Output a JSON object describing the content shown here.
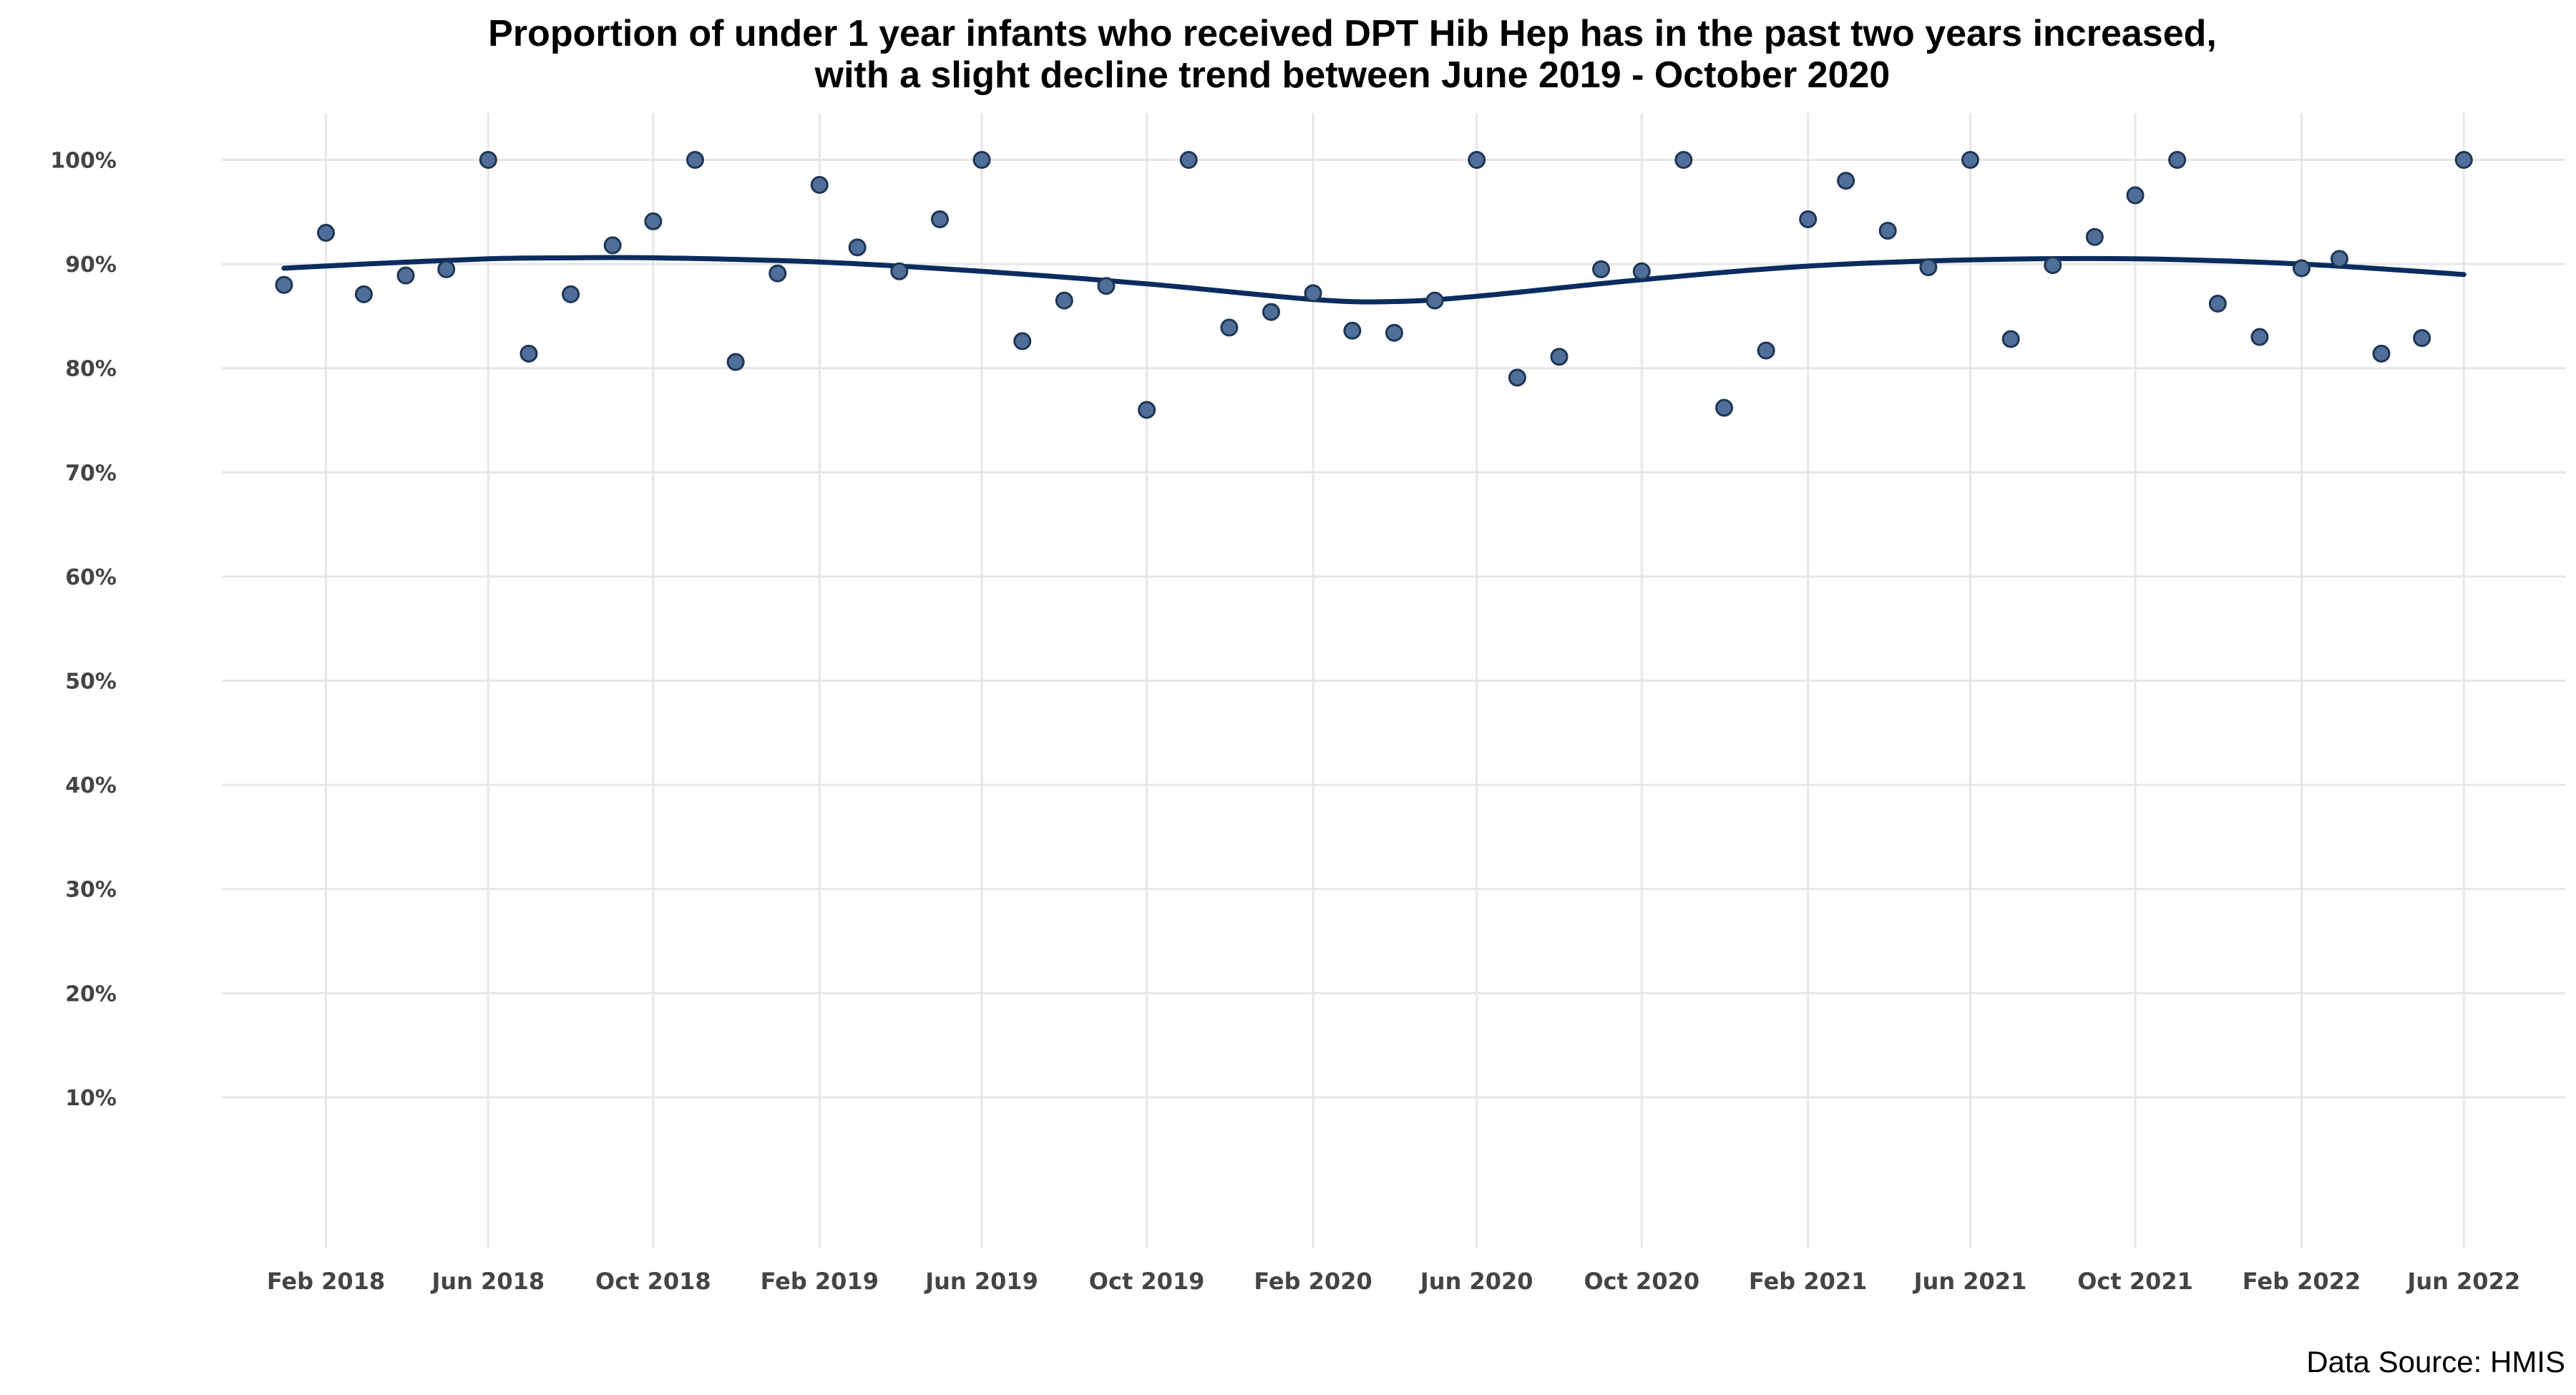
{
  "chart_data": {
    "type": "scatter",
    "title_lines": [
      "Proportion of under 1 year infants who received DPT Hib Hep has in the past two years increased,",
      "with a slight decline trend between June 2019 - October 2020"
    ],
    "source": "Data Source: HMIS",
    "xlabel": "",
    "ylabel": "",
    "x_ticks": [
      {
        "date": "2018-02-01",
        "label": "Feb 2018"
      },
      {
        "date": "2018-06-01",
        "label": "Jun 2018"
      },
      {
        "date": "2018-10-01",
        "label": "Oct 2018"
      },
      {
        "date": "2019-02-01",
        "label": "Feb 2019"
      },
      {
        "date": "2019-06-01",
        "label": "Jun 2019"
      },
      {
        "date": "2019-10-01",
        "label": "Oct 2019"
      },
      {
        "date": "2020-02-01",
        "label": "Feb 2020"
      },
      {
        "date": "2020-06-01",
        "label": "Jun 2020"
      },
      {
        "date": "2020-10-01",
        "label": "Oct 2020"
      },
      {
        "date": "2021-02-01",
        "label": "Feb 2021"
      },
      {
        "date": "2021-06-01",
        "label": "Jun 2021"
      },
      {
        "date": "2021-10-01",
        "label": "Oct 2021"
      },
      {
        "date": "2022-02-01",
        "label": "Feb 2022"
      },
      {
        "date": "2022-06-01",
        "label": "Jun 2022"
      }
    ],
    "y_ticks": [
      {
        "value": 10,
        "label": "10%"
      },
      {
        "value": 20,
        "label": "20%"
      },
      {
        "value": 30,
        "label": "30%"
      },
      {
        "value": 40,
        "label": "40%"
      },
      {
        "value": 50,
        "label": "50%"
      },
      {
        "value": 60,
        "label": "60%"
      },
      {
        "value": 70,
        "label": "70%"
      },
      {
        "value": 80,
        "label": "80%"
      },
      {
        "value": 90,
        "label": "90%"
      },
      {
        "value": 100,
        "label": "100%"
      }
    ],
    "xlim": [
      "2017-11-16",
      "2022-08-15"
    ],
    "ylim": [
      -4.5,
      104.5
    ],
    "grid": true,
    "legend": "none",
    "colors": {
      "point_fill": "#4f6f9a",
      "point_stroke": "#1f3553",
      "trend": "#0b2c5f",
      "grid": "#e6e6e6"
    },
    "series": [
      {
        "points": [
          {
            "x": "2018-01-01",
            "y": 88.0
          },
          {
            "x": "2018-02-01",
            "y": 93.0
          },
          {
            "x": "2018-03-01",
            "y": 87.1
          },
          {
            "x": "2018-04-01",
            "y": 88.9
          },
          {
            "x": "2018-05-01",
            "y": 89.5
          },
          {
            "x": "2018-06-01",
            "y": 100.0
          },
          {
            "x": "2018-07-01",
            "y": 81.4
          },
          {
            "x": "2018-08-01",
            "y": 87.1
          },
          {
            "x": "2018-09-01",
            "y": 91.8
          },
          {
            "x": "2018-10-01",
            "y": 94.1
          },
          {
            "x": "2018-11-01",
            "y": 100.0
          },
          {
            "x": "2018-12-01",
            "y": 80.6
          },
          {
            "x": "2019-01-01",
            "y": 89.1
          },
          {
            "x": "2019-02-01",
            "y": 97.6
          },
          {
            "x": "2019-03-01",
            "y": 91.6
          },
          {
            "x": "2019-04-01",
            "y": 89.3
          },
          {
            "x": "2019-05-01",
            "y": 94.3
          },
          {
            "x": "2019-06-01",
            "y": 100.0
          },
          {
            "x": "2019-07-01",
            "y": 82.6
          },
          {
            "x": "2019-08-01",
            "y": 86.5
          },
          {
            "x": "2019-09-01",
            "y": 87.9
          },
          {
            "x": "2019-10-01",
            "y": 76.0
          },
          {
            "x": "2019-11-01",
            "y": 100.0
          },
          {
            "x": "2019-12-01",
            "y": 83.9
          },
          {
            "x": "2020-01-01",
            "y": 85.4
          },
          {
            "x": "2020-02-01",
            "y": 87.2
          },
          {
            "x": "2020-03-01",
            "y": 83.6
          },
          {
            "x": "2020-04-01",
            "y": 83.4
          },
          {
            "x": "2020-05-01",
            "y": 86.5
          },
          {
            "x": "2020-06-01",
            "y": 100.0
          },
          {
            "x": "2020-07-01",
            "y": 79.1
          },
          {
            "x": "2020-08-01",
            "y": 81.1
          },
          {
            "x": "2020-09-01",
            "y": 89.5
          },
          {
            "x": "2020-10-01",
            "y": 89.3
          },
          {
            "x": "2020-11-01",
            "y": 100.0
          },
          {
            "x": "2020-12-01",
            "y": 76.2
          },
          {
            "x": "2021-01-01",
            "y": 81.7
          },
          {
            "x": "2021-02-01",
            "y": 94.3
          },
          {
            "x": "2021-03-01",
            "y": 98.0
          },
          {
            "x": "2021-04-01",
            "y": 93.2
          },
          {
            "x": "2021-05-01",
            "y": 89.7
          },
          {
            "x": "2021-06-01",
            "y": 100.0
          },
          {
            "x": "2021-07-01",
            "y": 82.8
          },
          {
            "x": "2021-08-01",
            "y": 89.9
          },
          {
            "x": "2021-09-01",
            "y": 92.6
          },
          {
            "x": "2021-10-01",
            "y": 96.6
          },
          {
            "x": "2021-11-01",
            "y": 100.0
          },
          {
            "x": "2021-12-01",
            "y": 86.2
          },
          {
            "x": "2022-01-01",
            "y": 83.0
          },
          {
            "x": "2022-02-01",
            "y": 89.6
          },
          {
            "x": "2022-03-01",
            "y": 90.5
          },
          {
            "x": "2022-04-01",
            "y": 81.4
          },
          {
            "x": "2022-05-01",
            "y": 82.9
          },
          {
            "x": "2022-06-01",
            "y": 100.0
          }
        ],
        "trend": [
          {
            "x": "2018-01-01",
            "y": 89.6
          },
          {
            "x": "2018-03-01",
            "y": 90.0
          },
          {
            "x": "2018-06-01",
            "y": 90.5
          },
          {
            "x": "2018-08-01",
            "y": 90.6
          },
          {
            "x": "2018-10-01",
            "y": 90.6
          },
          {
            "x": "2019-02-01",
            "y": 90.2
          },
          {
            "x": "2019-06-01",
            "y": 89.3
          },
          {
            "x": "2019-10-01",
            "y": 88.1
          },
          {
            "x": "2020-02-01",
            "y": 86.6
          },
          {
            "x": "2020-04-01",
            "y": 86.4
          },
          {
            "x": "2020-06-01",
            "y": 86.9
          },
          {
            "x": "2020-10-01",
            "y": 88.5
          },
          {
            "x": "2021-02-01",
            "y": 89.8
          },
          {
            "x": "2021-06-01",
            "y": 90.4
          },
          {
            "x": "2021-10-01",
            "y": 90.5
          },
          {
            "x": "2022-02-01",
            "y": 90.0
          },
          {
            "x": "2022-06-01",
            "y": 89.0
          }
        ]
      }
    ]
  }
}
